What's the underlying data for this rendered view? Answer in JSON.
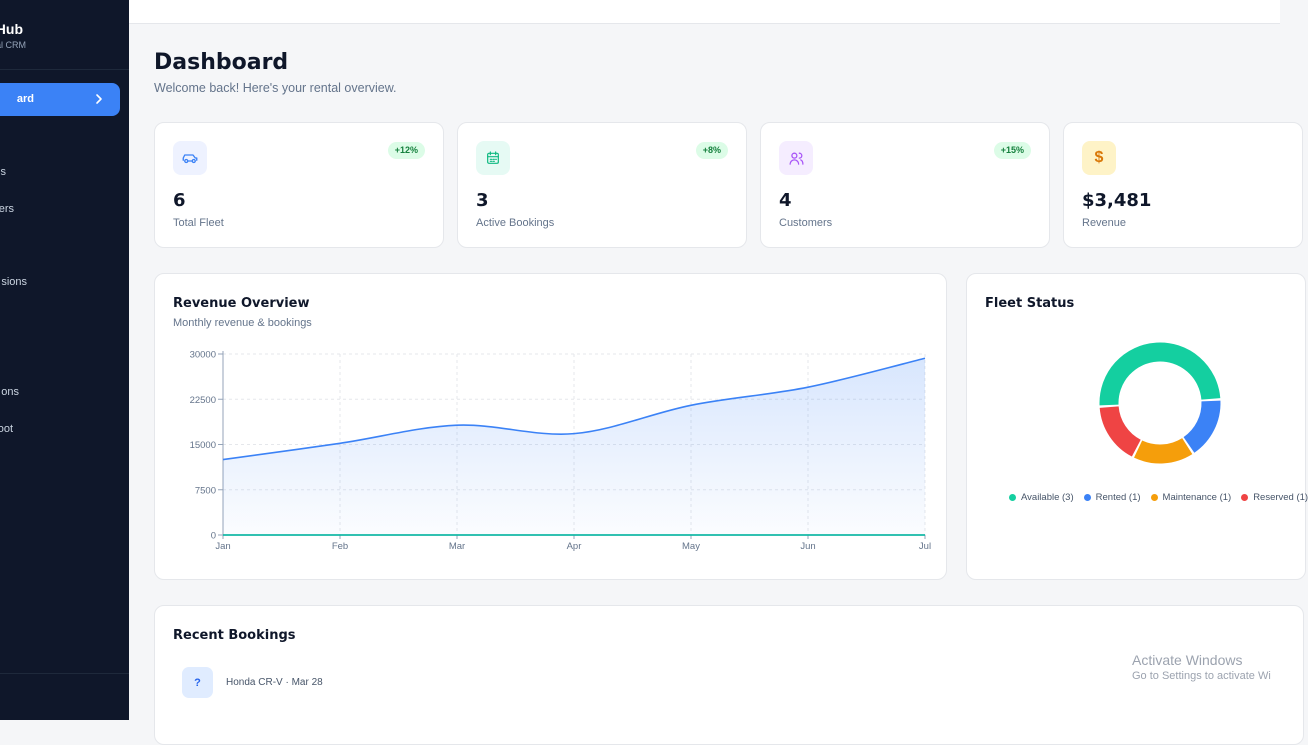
{
  "sidebar": {
    "brand_title": "Hub",
    "brand_subtitle": "tal CRM",
    "active_item": "ard",
    "items": [
      "s",
      "ers",
      "sions",
      "ons",
      "oot"
    ]
  },
  "header": {
    "title": "Dashboard",
    "subtitle": "Welcome back! Here's your rental overview."
  },
  "stats": [
    {
      "value": "6",
      "label": "Total Fleet",
      "badge": "+12%",
      "icon": "car-icon",
      "icon_bg": "#eef2ff",
      "icon_color": "#3b82f6"
    },
    {
      "value": "3",
      "label": "Active Bookings",
      "badge": "+8%",
      "icon": "calendar-icon",
      "icon_bg": "#e6faf4",
      "icon_color": "#10b981"
    },
    {
      "value": "4",
      "label": "Customers",
      "badge": "+15%",
      "icon": "users-icon",
      "icon_bg": "#f5edff",
      "icon_color": "#a855f7"
    },
    {
      "value": "$3,481",
      "label": "Revenue",
      "badge": "",
      "icon": "dollar-icon",
      "icon_bg": "#fef3c7",
      "icon_color": "#d97706"
    }
  ],
  "revenue": {
    "title": "Revenue Overview",
    "subtitle": "Monthly revenue & bookings"
  },
  "fleet": {
    "title": "Fleet Status"
  },
  "bookings": {
    "title": "Recent Bookings",
    "items": [
      {
        "icon_text": "?",
        "text": "Honda CR-V · Mar 28"
      }
    ]
  },
  "watermark": {
    "line1": "Activate Windows",
    "line2": "Go to Settings to activate Wi"
  },
  "chart_data": [
    {
      "type": "area",
      "categories": [
        "Jan",
        "Feb",
        "Mar",
        "Apr",
        "May",
        "Jun",
        "Jul"
      ],
      "ylim": [
        0,
        30000
      ],
      "yticks": [
        0,
        7500,
        15000,
        22500,
        30000
      ],
      "grid": true,
      "series": [
        {
          "values": [
            12500,
            15200,
            18200,
            16800,
            21500,
            24500,
            29300
          ],
          "color": "#3b82f6"
        },
        {
          "values": [
            0,
            0,
            0,
            0,
            0,
            0,
            0
          ],
          "color": "#14b8a6"
        }
      ]
    },
    {
      "type": "pie",
      "donut": true,
      "legend": "bottom",
      "slices": [
        {
          "label": "Available (3)",
          "value": 3,
          "color": "#14cfa0"
        },
        {
          "label": "Rented (1)",
          "value": 1,
          "color": "#3b82f6"
        },
        {
          "label": "Maintenance (1)",
          "value": 1,
          "color": "#f59e0b"
        },
        {
          "label": "Reserved (1)",
          "value": 1,
          "color": "#ef4444"
        }
      ]
    }
  ]
}
